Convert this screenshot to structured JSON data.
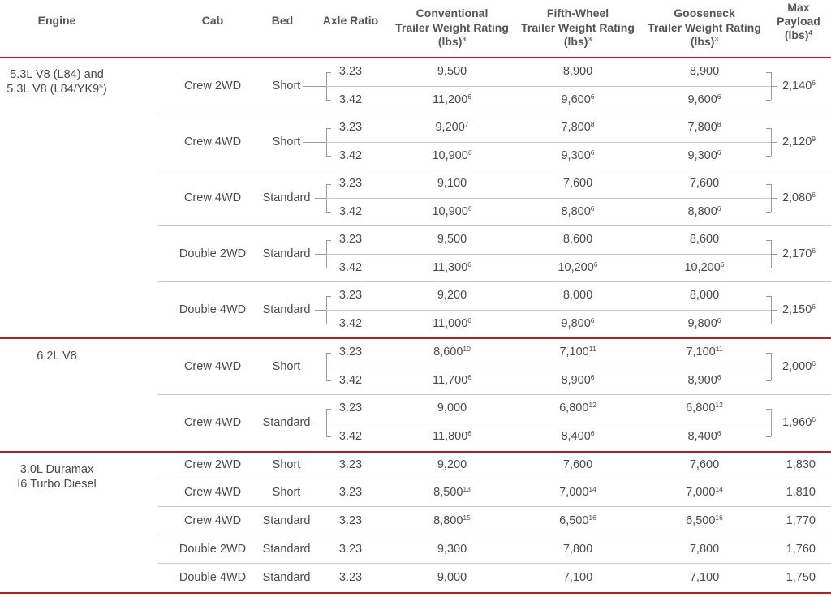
{
  "header": {
    "engine": "Engine",
    "cab": "Cab",
    "bed": "Bed",
    "axle": "Axle Ratio",
    "conventional": {
      "l1": "Conventional",
      "l2": "Trailer Weight Rating",
      "l3": "(lbs)",
      "sup": "3"
    },
    "fifth_wheel": {
      "l1": "Fifth-Wheel",
      "l2": "Trailer Weight Rating",
      "l3": "(lbs)",
      "sup": "3"
    },
    "gooseneck": {
      "l1": "Gooseneck",
      "l2": "Trailer Weight Rating",
      "l3": "(lbs)",
      "sup": "3"
    },
    "payload": {
      "l1": "Max",
      "l2": "Payload",
      "l3": "(lbs)",
      "sup": "4"
    }
  },
  "engines": [
    {
      "line1": "5.3L V8 (L84) and",
      "line2": "5.3L V8 (L84/YK9",
      "sup": "5",
      "tail": ")"
    },
    {
      "line1": "6.2L V8"
    },
    {
      "line1": "3.0L Duramax",
      "line2": "I6 Turbo Diesel"
    }
  ],
  "groups": [
    {
      "cab": "Crew 2WD",
      "bed": "Short",
      "payload": "2,140",
      "payload_sup": "6",
      "rows": [
        {
          "axle": "3.23",
          "conv": "9,500",
          "conv_sup": "",
          "fifth": "8,900",
          "fifth_sup": "",
          "goose": "8,900",
          "goose_sup": ""
        },
        {
          "axle": "3.42",
          "conv": "11,200",
          "conv_sup": "6",
          "fifth": "9,600",
          "fifth_sup": "6",
          "goose": "9,600",
          "goose_sup": "6"
        }
      ]
    },
    {
      "cab": "Crew 4WD",
      "bed": "Short",
      "payload": "2,120",
      "payload_sup": "9",
      "rows": [
        {
          "axle": "3.23",
          "conv": "9,200",
          "conv_sup": "7",
          "fifth": "7,800",
          "fifth_sup": "8",
          "goose": "7,800",
          "goose_sup": "8"
        },
        {
          "axle": "3.42",
          "conv": "10,900",
          "conv_sup": "6",
          "fifth": "9,300",
          "fifth_sup": "6",
          "goose": "9,300",
          "goose_sup": "6"
        }
      ]
    },
    {
      "cab": "Crew 4WD",
      "bed": "Standard",
      "payload": "2,080",
      "payload_sup": "6",
      "rows": [
        {
          "axle": "3.23",
          "conv": "9,100",
          "conv_sup": "",
          "fifth": "7,600",
          "fifth_sup": "",
          "goose": "7,600",
          "goose_sup": ""
        },
        {
          "axle": "3.42",
          "conv": "10,900",
          "conv_sup": "6",
          "fifth": "8,800",
          "fifth_sup": "6",
          "goose": "8,800",
          "goose_sup": "6"
        }
      ]
    },
    {
      "cab": "Double 2WD",
      "bed": "Standard",
      "payload": "2,170",
      "payload_sup": "6",
      "rows": [
        {
          "axle": "3.23",
          "conv": "9,500",
          "conv_sup": "",
          "fifth": "8,600",
          "fifth_sup": "",
          "goose": "8,600",
          "goose_sup": ""
        },
        {
          "axle": "3.42",
          "conv": "11,300",
          "conv_sup": "6",
          "fifth": "10,200",
          "fifth_sup": "6",
          "goose": "10,200",
          "goose_sup": "6"
        }
      ]
    },
    {
      "cab": "Double 4WD",
      "bed": "Standard",
      "payload": "2,150",
      "payload_sup": "6",
      "rows": [
        {
          "axle": "3.23",
          "conv": "9,200",
          "conv_sup": "",
          "fifth": "8,000",
          "fifth_sup": "",
          "goose": "8,000",
          "goose_sup": ""
        },
        {
          "axle": "3.42",
          "conv": "11,000",
          "conv_sup": "6",
          "fifth": "9,800",
          "fifth_sup": "6",
          "goose": "9,800",
          "goose_sup": "6"
        }
      ]
    },
    {
      "cab": "Crew 4WD",
      "bed": "Short",
      "payload": "2,000",
      "payload_sup": "6",
      "rows": [
        {
          "axle": "3.23",
          "conv": "8,600",
          "conv_sup": "10",
          "fifth": "7,100",
          "fifth_sup": "11",
          "goose": "7,100",
          "goose_sup": "11"
        },
        {
          "axle": "3.42",
          "conv": "11,700",
          "conv_sup": "6",
          "fifth": "8,900",
          "fifth_sup": "6",
          "goose": "8,900",
          "goose_sup": "6"
        }
      ]
    },
    {
      "cab": "Crew 4WD",
      "bed": "Standard",
      "payload": "1,960",
      "payload_sup": "6",
      "rows": [
        {
          "axle": "3.23",
          "conv": "9,000",
          "conv_sup": "",
          "fifth": "6,800",
          "fifth_sup": "12",
          "goose": "6,800",
          "goose_sup": "12"
        },
        {
          "axle": "3.42",
          "conv": "11,800",
          "conv_sup": "6",
          "fifth": "8,400",
          "fifth_sup": "6",
          "goose": "8,400",
          "goose_sup": "6"
        }
      ]
    }
  ],
  "singles": [
    {
      "cab": "Crew 2WD",
      "bed": "Short",
      "axle": "3.23",
      "conv": "9,200",
      "conv_sup": "",
      "fifth": "7,600",
      "fifth_sup": "",
      "goose": "7,600",
      "goose_sup": "",
      "payload": "1,830"
    },
    {
      "cab": "Crew 4WD",
      "bed": "Short",
      "axle": "3.23",
      "conv": "8,500",
      "conv_sup": "13",
      "fifth": "7,000",
      "fifth_sup": "14",
      "goose": "7,000",
      "goose_sup": "14",
      "payload": "1,810"
    },
    {
      "cab": "Crew 4WD",
      "bed": "Standard",
      "axle": "3.23",
      "conv": "8,800",
      "conv_sup": "15",
      "fifth": "6,500",
      "fifth_sup": "16",
      "goose": "6,500",
      "goose_sup": "16",
      "payload": "1,770"
    },
    {
      "cab": "Double 2WD",
      "bed": "Standard",
      "axle": "3.23",
      "conv": "9,300",
      "conv_sup": "",
      "fifth": "7,800",
      "fifth_sup": "",
      "goose": "7,800",
      "goose_sup": "",
      "payload": "1,760"
    },
    {
      "cab": "Double 4WD",
      "bed": "Standard",
      "axle": "3.23",
      "conv": "9,000",
      "conv_sup": "",
      "fifth": "7,100",
      "fifth_sup": "",
      "goose": "7,100",
      "goose_sup": "",
      "payload": "1,750"
    }
  ],
  "colors": {
    "accent_rule": "#b51d24",
    "row_rule": "#c8c8c8",
    "text": "#4a4a4a"
  }
}
